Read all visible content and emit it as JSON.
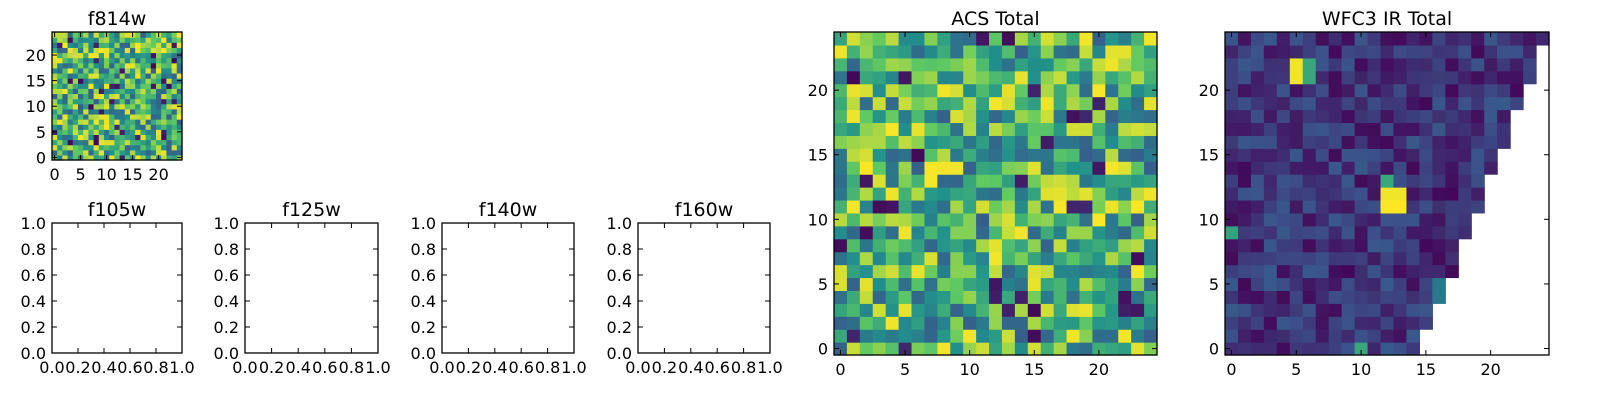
{
  "colormap": [
    "#440154",
    "#3b528b",
    "#21918c",
    "#5ec962",
    "#fde725"
  ],
  "chart_data": [
    {
      "id": "f814w",
      "type": "heatmap",
      "title": "f814w",
      "grid_size": 25,
      "xlim": [
        -0.5,
        24.5
      ],
      "ylim": [
        -0.5,
        24.5
      ],
      "xticks": [
        0,
        5,
        10,
        15,
        20
      ],
      "yticks": [
        0,
        5,
        10,
        15,
        20
      ],
      "xtick_labels": [
        "0",
        "5",
        "10",
        "15",
        "20"
      ],
      "ytick_labels": [
        "0",
        "5",
        "10",
        "15",
        "20"
      ],
      "data_model": "noise",
      "seed": 814,
      "value_range": [
        0.3,
        1.0
      ]
    },
    {
      "id": "f105w",
      "type": "heatmap",
      "title": "f105w",
      "empty": true,
      "xlim": [
        0.0,
        1.0
      ],
      "ylim": [
        0.0,
        1.0
      ],
      "xticks": [
        0.0,
        0.2,
        0.4,
        0.6,
        0.8,
        1.0
      ],
      "yticks": [
        0.0,
        0.2,
        0.4,
        0.6,
        0.8,
        1.0
      ],
      "xtick_labels": [
        "0.0",
        "0.2",
        "0.4",
        "0.6",
        "0.8",
        "1.0"
      ],
      "ytick_labels": [
        "0.0",
        "0.2",
        "0.4",
        "0.6",
        "0.8",
        "1.0"
      ]
    },
    {
      "id": "f125w",
      "type": "heatmap",
      "title": "f125w",
      "empty": true,
      "xlim": [
        0.0,
        1.0
      ],
      "ylim": [
        0.0,
        1.0
      ],
      "xticks": [
        0.0,
        0.2,
        0.4,
        0.6,
        0.8,
        1.0
      ],
      "yticks": [
        0.0,
        0.2,
        0.4,
        0.6,
        0.8,
        1.0
      ],
      "xtick_labels": [
        "0.0",
        "0.2",
        "0.4",
        "0.6",
        "0.8",
        "1.0"
      ],
      "ytick_labels": [
        "0.0",
        "0.2",
        "0.4",
        "0.6",
        "0.8",
        "1.0"
      ]
    },
    {
      "id": "f140w",
      "type": "heatmap",
      "title": "f140w",
      "empty": true,
      "xlim": [
        0.0,
        1.0
      ],
      "ylim": [
        0.0,
        1.0
      ],
      "xticks": [
        0.0,
        0.2,
        0.4,
        0.6,
        0.8,
        1.0
      ],
      "yticks": [
        0.0,
        0.2,
        0.4,
        0.6,
        0.8,
        1.0
      ],
      "xtick_labels": [
        "0.0",
        "0.2",
        "0.4",
        "0.6",
        "0.8",
        "1.0"
      ],
      "ytick_labels": [
        "0.0",
        "0.2",
        "0.4",
        "0.6",
        "0.8",
        "1.0"
      ]
    },
    {
      "id": "f160w",
      "type": "heatmap",
      "title": "f160w",
      "empty": true,
      "xlim": [
        0.0,
        1.0
      ],
      "ylim": [
        0.0,
        1.0
      ],
      "xticks": [
        0.0,
        0.2,
        0.4,
        0.6,
        0.8,
        1.0
      ],
      "yticks": [
        0.0,
        0.2,
        0.4,
        0.6,
        0.8,
        1.0
      ],
      "xtick_labels": [
        "0.0",
        "0.2",
        "0.4",
        "0.6",
        "0.8",
        "1.0"
      ],
      "ytick_labels": [
        "0.0",
        "0.2",
        "0.4",
        "0.6",
        "0.8",
        "1.0"
      ]
    },
    {
      "id": "acs-total",
      "type": "heatmap",
      "title": "ACS Total",
      "grid_size": 25,
      "xlim": [
        -0.5,
        24.5
      ],
      "ylim": [
        -0.5,
        24.5
      ],
      "xticks": [
        0,
        5,
        10,
        15,
        20
      ],
      "yticks": [
        0,
        5,
        10,
        15,
        20
      ],
      "xtick_labels": [
        "0",
        "5",
        "10",
        "15",
        "20"
      ],
      "ytick_labels": [
        "0",
        "5",
        "10",
        "15",
        "20"
      ],
      "data_model": "noise",
      "seed": 2017,
      "value_range": [
        0.3,
        1.0
      ]
    },
    {
      "id": "wfc3-ir-total",
      "type": "heatmap",
      "title": "WFC3 IR Total",
      "grid_size": 25,
      "xlim": [
        -0.5,
        24.5
      ],
      "ylim": [
        -0.5,
        24.5
      ],
      "xticks": [
        0,
        5,
        10,
        15,
        20
      ],
      "yticks": [
        0,
        5,
        10,
        15,
        20
      ],
      "xtick_labels": [
        "0",
        "5",
        "10",
        "15",
        "20"
      ],
      "ytick_labels": [
        "0",
        "5",
        "10",
        "15",
        "20"
      ],
      "data_model": "noise",
      "seed": 3160,
      "value_range": [
        0.02,
        0.28
      ],
      "masked_region": "upper-right triangle (blank where column x > 24 - 0.4 * (24 - row y))",
      "mask_slope": 0.4,
      "bright_spots": [
        {
          "x": 5,
          "y": 21,
          "value": 0.98
        },
        {
          "x": 5,
          "y": 22,
          "value": 0.98
        },
        {
          "x": 6,
          "y": 21,
          "value": 0.6
        },
        {
          "x": 6,
          "y": 22,
          "value": 0.6
        },
        {
          "x": 12,
          "y": 11,
          "value": 1.0
        },
        {
          "x": 13,
          "y": 11,
          "value": 1.0
        },
        {
          "x": 12,
          "y": 12,
          "value": 0.98
        },
        {
          "x": 13,
          "y": 12,
          "value": 0.98
        },
        {
          "x": 12,
          "y": 13,
          "value": 0.6
        },
        {
          "x": 0,
          "y": 9,
          "value": 0.58
        },
        {
          "x": 10,
          "y": 0,
          "value": 0.6
        },
        {
          "x": 16,
          "y": 4,
          "value": 0.4
        },
        {
          "x": 16,
          "y": 5,
          "value": 0.4
        }
      ]
    }
  ]
}
